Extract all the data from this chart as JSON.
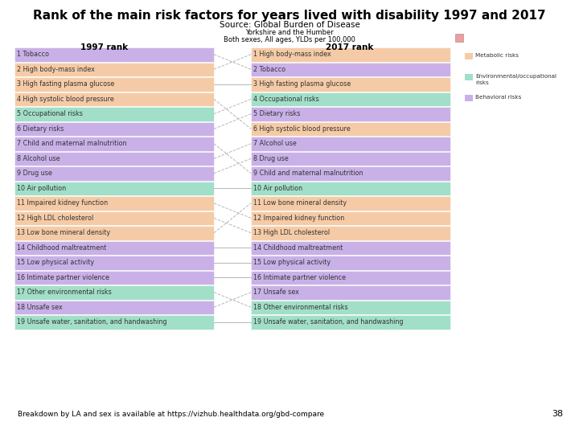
{
  "title": "Rank of the main risk factors for years lived with disability 1997 and 2017",
  "subtitle": "Source: Global Burden of Disease",
  "sub2": "Yorkshire and the Humber",
  "sub3": "Both sexes, All ages, YLDs per 100,000",
  "rank1997_label": "1997 rank",
  "rank2017_label": "2017 rank",
  "footer": "Breakdown by LA and sex is available at https://vizhub.healthdata.org/gbd-compare",
  "page_num": "38",
  "items_1997": [
    {
      "rank": 1,
      "label": "Tobacco",
      "category": "behavioral"
    },
    {
      "rank": 2,
      "label": "High body-mass index",
      "category": "metabolic"
    },
    {
      "rank": 3,
      "label": "High fasting plasma glucose",
      "category": "metabolic"
    },
    {
      "rank": 4,
      "label": "High systolic blood pressure",
      "category": "metabolic"
    },
    {
      "rank": 5,
      "label": "Occupational risks",
      "category": "env_occ"
    },
    {
      "rank": 6,
      "label": "Dietary risks",
      "category": "behavioral"
    },
    {
      "rank": 7,
      "label": "Child and maternal malnutrition",
      "category": "behavioral"
    },
    {
      "rank": 8,
      "label": "Alcohol use",
      "category": "behavioral"
    },
    {
      "rank": 9,
      "label": "Drug use",
      "category": "behavioral"
    },
    {
      "rank": 10,
      "label": "Air pollution",
      "category": "env_occ"
    },
    {
      "rank": 11,
      "label": "Impaired kidney function",
      "category": "metabolic"
    },
    {
      "rank": 12,
      "label": "High LDL cholesterol",
      "category": "metabolic"
    },
    {
      "rank": 13,
      "label": "Low bone mineral density",
      "category": "metabolic"
    },
    {
      "rank": 14,
      "label": "Childhood maltreatment",
      "category": "behavioral"
    },
    {
      "rank": 15,
      "label": "Low physical activity",
      "category": "behavioral"
    },
    {
      "rank": 16,
      "label": "Intimate partner violence",
      "category": "behavioral"
    },
    {
      "rank": 17,
      "label": "Other environmental risks",
      "category": "env_occ"
    },
    {
      "rank": 18,
      "label": "Unsafe sex",
      "category": "behavioral"
    },
    {
      "rank": 19,
      "label": "Unsafe water, sanitation, and handwashing",
      "category": "env_occ"
    }
  ],
  "items_2017": [
    {
      "rank": 1,
      "label": "High body-mass index",
      "category": "metabolic"
    },
    {
      "rank": 2,
      "label": "Tobacco",
      "category": "behavioral"
    },
    {
      "rank": 3,
      "label": "High fasting plasma glucose",
      "category": "metabolic"
    },
    {
      "rank": 4,
      "label": "Occupational risks",
      "category": "env_occ"
    },
    {
      "rank": 5,
      "label": "Dietary risks",
      "category": "behavioral"
    },
    {
      "rank": 6,
      "label": "High systolic blood pressure",
      "category": "metabolic"
    },
    {
      "rank": 7,
      "label": "Alcohol use",
      "category": "behavioral"
    },
    {
      "rank": 8,
      "label": "Drug use",
      "category": "behavioral"
    },
    {
      "rank": 9,
      "label": "Child and maternal malnutrition",
      "category": "behavioral"
    },
    {
      "rank": 10,
      "label": "Air pollution",
      "category": "env_occ"
    },
    {
      "rank": 11,
      "label": "Low bone mineral density",
      "category": "metabolic"
    },
    {
      "rank": 12,
      "label": "Impaired kidney function",
      "category": "metabolic"
    },
    {
      "rank": 13,
      "label": "High LDL cholesterol",
      "category": "metabolic"
    },
    {
      "rank": 14,
      "label": "Childhood maltreatment",
      "category": "behavioral"
    },
    {
      "rank": 15,
      "label": "Low physical activity",
      "category": "behavioral"
    },
    {
      "rank": 16,
      "label": "Intimate partner violence",
      "category": "behavioral"
    },
    {
      "rank": 17,
      "label": "Unsafe sex",
      "category": "behavioral"
    },
    {
      "rank": 18,
      "label": "Other environmental risks",
      "category": "env_occ"
    },
    {
      "rank": 19,
      "label": "Unsafe water, sanitation, and handwashing",
      "category": "env_occ"
    }
  ],
  "colors": {
    "metabolic": "#f5cba7",
    "env_occ": "#a2dfc8",
    "behavioral": "#c9b1e8"
  },
  "legend": [
    {
      "label": "Metabolic risks",
      "color": "#f5cba7"
    },
    {
      "label": "Environmental/occupational\nrisks",
      "color": "#a2dfc8"
    },
    {
      "label": "Behavioral risks",
      "color": "#c9b1e8"
    }
  ],
  "bg_color": "#ffffff",
  "title_fontsize": 11,
  "subtitle_fontsize": 7.5,
  "row_fontsize": 5.8,
  "header_fontsize": 7.5,
  "icon_color": "#e8a0a0",
  "icon_edge_color": "#cc8888",
  "line_color": "#aaaaaa",
  "text_color": "#333333"
}
